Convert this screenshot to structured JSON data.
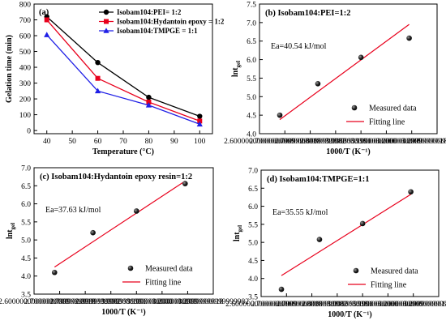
{
  "chart_data": [
    {
      "id": "a",
      "type": "line",
      "title": "(a)",
      "xlabel": "Temperature (°C)",
      "ylabel": "Gelation time (min)",
      "xlim": [
        35,
        105
      ],
      "ylim": [
        -20,
        800
      ],
      "xticks": [
        40,
        50,
        60,
        70,
        80,
        90,
        100
      ],
      "yticks": [
        0,
        100,
        200,
        300,
        400,
        500,
        600,
        700,
        800
      ],
      "x": [
        40,
        60,
        80,
        100
      ],
      "legend_position": "top-right",
      "series": [
        {
          "name": "Isobam104:PEI= 1:2",
          "marker": "circle",
          "color": "#000000",
          "values": [
            720,
            430,
            210,
            90
          ]
        },
        {
          "name": "Isobam104:Hydantoin epoxy = 1:2",
          "marker": "square",
          "color": "#e8001c",
          "values": [
            700,
            330,
            180,
            60
          ]
        },
        {
          "name": "Isobam104:TMPGE = 1:1",
          "marker": "triangle",
          "color": "#1f1fe6",
          "values": [
            605,
            250,
            160,
            40
          ]
        }
      ]
    },
    {
      "id": "b",
      "type": "scatter",
      "title": "(b) Isobam104:PEI=1:2",
      "annotation": "Ea=40.54 kJ/mol",
      "xlabel": "1000/T (K⁻¹)",
      "ylabel_main": "lnt",
      "ylabel_sub": "gel",
      "xlim": [
        2.6,
        3.3
      ],
      "ylim": [
        4.0,
        7.5
      ],
      "xticks": [
        2.6,
        2.7,
        2.8,
        2.9,
        3.0,
        3.1,
        3.2,
        3.3
      ],
      "yticks": [
        4.0,
        4.5,
        5.0,
        5.5,
        6.0,
        6.5,
        7.0,
        7.5
      ],
      "points": {
        "name": "Measured data",
        "x": [
          2.68,
          2.83,
          3.0,
          3.19
        ],
        "y": [
          4.5,
          5.35,
          6.06,
          6.58
        ]
      },
      "fit": {
        "name": "Fitting line",
        "x": [
          2.68,
          3.19
        ],
        "y": [
          4.38,
          6.95
        ]
      },
      "legend_position": "bottom-right"
    },
    {
      "id": "c",
      "type": "scatter",
      "title": "(c) Isobam104:Hydantoin epoxy resin=1:2",
      "annotation": "Ea=37.63 kJ/mol",
      "xlabel": "1000/T (K⁻¹)",
      "ylabel_main": "lnt",
      "ylabel_sub": "gel",
      "xlim": [
        2.6,
        3.3
      ],
      "ylim": [
        3.5,
        7.0
      ],
      "xticks": [
        2.6,
        2.7,
        2.8,
        2.9,
        3.0,
        3.1,
        3.2,
        3.3
      ],
      "yticks": [
        3.5,
        4.0,
        4.5,
        5.0,
        5.5,
        6.0,
        6.5,
        7.0
      ],
      "points": {
        "name": "Measured data",
        "x": [
          2.68,
          2.83,
          3.0,
          3.19
        ],
        "y": [
          4.1,
          5.2,
          5.8,
          6.56
        ]
      },
      "fit": {
        "name": "Fitting line",
        "x": [
          2.68,
          3.19
        ],
        "y": [
          4.25,
          6.63
        ]
      },
      "legend_position": "bottom-right"
    },
    {
      "id": "d",
      "type": "scatter",
      "title": "(d) Isobam104:TMPGE=1:1",
      "annotation": "Ea=35.55 kJ/mol",
      "xlabel": "1000/T (K⁻¹)",
      "ylabel_main": "lnt",
      "ylabel_sub": "gel",
      "xlim": [
        2.6,
        3.3
      ],
      "ylim": [
        3.5,
        7.0
      ],
      "xticks": [
        2.6,
        2.7,
        2.8,
        2.9,
        3.0,
        3.1,
        3.2,
        3.3
      ],
      "yticks": [
        3.5,
        4.0,
        4.5,
        5.0,
        5.5,
        6.0,
        6.5,
        7.0
      ],
      "points": {
        "name": "Measured data",
        "x": [
          2.68,
          2.83,
          3.0,
          3.19
        ],
        "y": [
          3.7,
          5.08,
          5.52,
          6.4
        ]
      },
      "fit": {
        "name": "Fitting line",
        "x": [
          2.68,
          3.19
        ],
        "y": [
          4.08,
          6.33
        ]
      },
      "legend_position": "bottom-right"
    }
  ]
}
